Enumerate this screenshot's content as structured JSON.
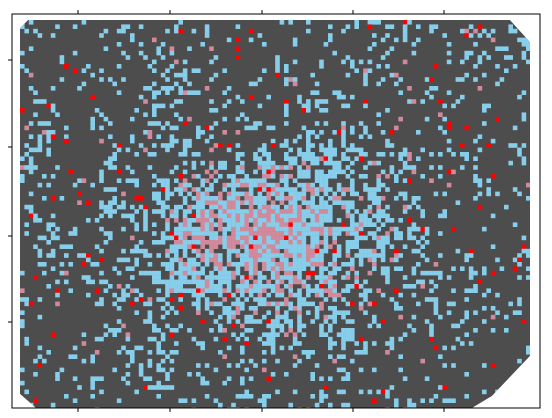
{
  "map": {
    "colors": [
      "#4d4d4d",
      "#87ceeb",
      "#d08a9c",
      "#ff0000"
    ]
  }
}
